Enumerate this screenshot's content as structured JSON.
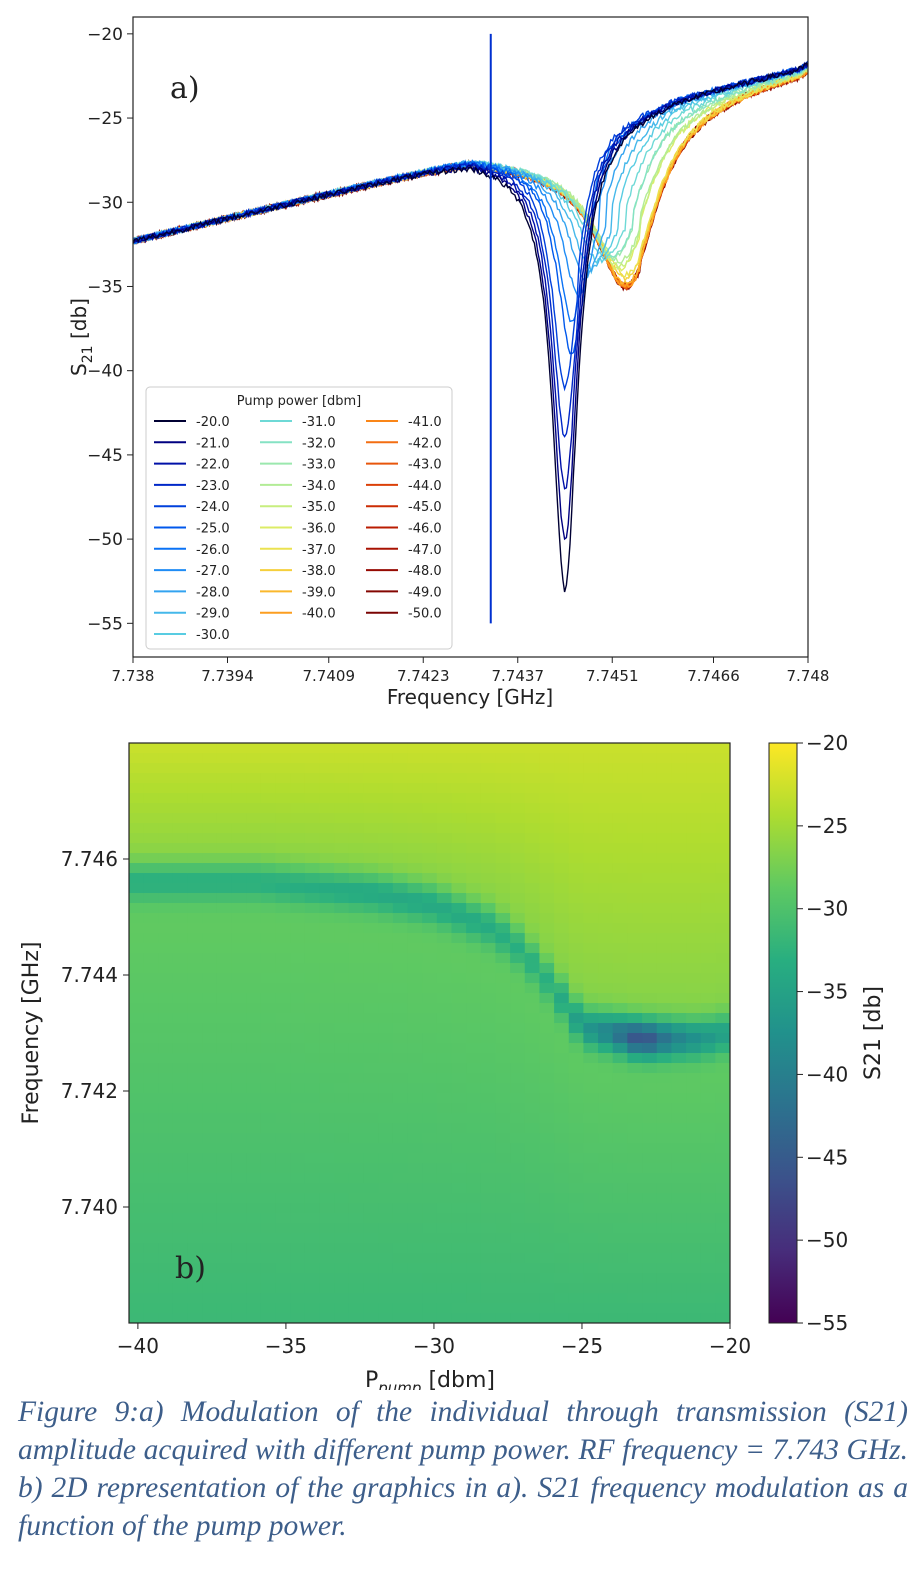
{
  "chart_data": [
    {
      "type": "line",
      "panel_label": "a)",
      "xlabel": "Frequency [GHz]",
      "ylabel_main": "S",
      "ylabel_sub": "21",
      "ylabel_suffix": " [db]",
      "xlim": [
        7.738,
        7.748
      ],
      "ylim": [
        -57,
        -19
      ],
      "x_ticks": [
        7.738,
        7.7394,
        7.7409,
        7.7423,
        7.7437,
        7.7451,
        7.7466,
        7.748
      ],
      "x_tick_labels": [
        "7.738",
        "7.7394",
        "7.7409",
        "7.7423",
        "7.7437",
        "7.7451",
        "7.7466",
        "7.748"
      ],
      "y_ticks": [
        -20,
        -25,
        -30,
        -35,
        -40,
        -45,
        -50,
        -55
      ],
      "y_tick_labels": [
        "−20",
        "−25",
        "−30",
        "−35",
        "−40",
        "−45",
        "−50",
        "−55"
      ],
      "legend_title": "Pump power [dbm]",
      "legend_placement": "lower-left",
      "grid": false,
      "series": [
        {
          "name": "-20.0",
          "color": "#000033",
          "dip_f": 7.7444,
          "dip_y": -53,
          "kink_f": 7.7444
        },
        {
          "name": "-21.0",
          "color": "#000080",
          "dip_f": 7.7444,
          "dip_y": -50,
          "kink_f": 7.7445
        },
        {
          "name": "-22.0",
          "color": "#0010a8",
          "dip_f": 7.7444,
          "dip_y": -47,
          "kink_f": 7.7445
        },
        {
          "name": "-23.0",
          "color": "#0028c8",
          "dip_f": 7.7444,
          "dip_y": -44,
          "kink_f": 7.7446
        },
        {
          "name": "-24.0",
          "color": "#0040dc",
          "dip_f": 7.7444,
          "dip_y": -41,
          "kink_f": 7.7446
        },
        {
          "name": "-25.0",
          "color": "#0058ec",
          "dip_f": 7.7445,
          "dip_y": -39,
          "kink_f": 7.7447
        },
        {
          "name": "-26.0",
          "color": "#0a72f5",
          "dip_f": 7.7445,
          "dip_y": -37,
          "kink_f": 7.7448
        },
        {
          "name": "-27.0",
          "color": "#1f8cf5",
          "dip_f": 7.7446,
          "dip_y": -35.5,
          "kink_f": 7.7449
        },
        {
          "name": "-28.0",
          "color": "#33a3f0",
          "dip_f": 7.7447,
          "dip_y": -34.5,
          "kink_f": 7.745
        },
        {
          "name": "-29.0",
          "color": "#45b8ea",
          "dip_f": 7.7448,
          "dip_y": -34,
          "kink_f": 7.7451
        },
        {
          "name": "-30.0",
          "color": "#58cce2",
          "dip_f": 7.7449,
          "dip_y": -33.5,
          "kink_f": 7.7452
        },
        {
          "name": "-31.0",
          "color": "#6ed9d6",
          "dip_f": 7.745,
          "dip_y": -33.3,
          "kink_f": 7.7453
        },
        {
          "name": "-32.0",
          "color": "#85e2c4",
          "dip_f": 7.7451,
          "dip_y": -33.2,
          "kink_f": 7.7454
        },
        {
          "name": "-33.0",
          "color": "#9be8ae",
          "dip_f": 7.7451,
          "dip_y": -33.3,
          "kink_f": 7.7454
        },
        {
          "name": "-34.0",
          "color": "#b2ec96",
          "dip_f": 7.7452,
          "dip_y": -33.5,
          "kink_f": 7.7455
        },
        {
          "name": "-35.0",
          "color": "#c7ee7e",
          "dip_f": 7.7452,
          "dip_y": -33.8,
          "kink_f": 7.7455
        },
        {
          "name": "-36.0",
          "color": "#dcec66",
          "dip_f": 7.7452,
          "dip_y": -34,
          "kink_f": 7.7455
        },
        {
          "name": "-37.0",
          "color": "#ebe250",
          "dip_f": 7.7453,
          "dip_y": -34.3,
          "kink_f": 7.7455
        },
        {
          "name": "-38.0",
          "color": "#f5cf3c",
          "dip_f": 7.7453,
          "dip_y": -34.5,
          "kink_f": 7.7455
        },
        {
          "name": "-39.0",
          "color": "#fab82c",
          "dip_f": 7.7453,
          "dip_y": -34.8,
          "kink_f": 7.7455
        },
        {
          "name": "-40.0",
          "color": "#fc9e20",
          "dip_f": 7.7453,
          "dip_y": -35,
          "kink_f": 7.7455
        },
        {
          "name": "-41.0",
          "color": "#fa8618",
          "dip_f": 7.7453,
          "dip_y": -35,
          "kink_f": 7.7455
        },
        {
          "name": "-42.0",
          "color": "#f36e12",
          "dip_f": 7.7453,
          "dip_y": -35,
          "kink_f": 7.7455
        },
        {
          "name": "-43.0",
          "color": "#e8560c",
          "dip_f": 7.7453,
          "dip_y": -35,
          "kink_f": 7.7455
        },
        {
          "name": "-44.0",
          "color": "#db4008",
          "dip_f": 7.7453,
          "dip_y": -35,
          "kink_f": 7.7455
        },
        {
          "name": "-45.0",
          "color": "#cb2c04",
          "dip_f": 7.7453,
          "dip_y": -35,
          "kink_f": 7.7455
        },
        {
          "name": "-46.0",
          "color": "#ba1c02",
          "dip_f": 7.7453,
          "dip_y": -35,
          "kink_f": 7.7455
        },
        {
          "name": "-47.0",
          "color": "#a81202",
          "dip_f": 7.7453,
          "dip_y": -35,
          "kink_f": 7.7455
        },
        {
          "name": "-48.0",
          "color": "#960a02",
          "dip_f": 7.7453,
          "dip_y": -35,
          "kink_f": 7.7455
        },
        {
          "name": "-49.0",
          "color": "#840602",
          "dip_f": 7.7453,
          "dip_y": -35,
          "kink_f": 7.7455
        },
        {
          "name": "-50.0",
          "color": "#7a0403",
          "dip_f": 7.7453,
          "dip_y": -35,
          "kink_f": 7.7455
        }
      ],
      "annotations": [
        {
          "type": "spike",
          "x": 7.7433,
          "y_top": -20,
          "y_bottom": -55
        }
      ]
    },
    {
      "type": "heatmap",
      "panel_label": "b)",
      "xlabel_main": "P",
      "xlabel_sub": "pump",
      "xlabel_suffix": " [dbm]",
      "ylabel": "Frequency [GHz]",
      "xlim": [
        -40.3,
        -20
      ],
      "ylim": [
        7.738,
        7.748
      ],
      "x_ticks": [
        -40,
        -35,
        -30,
        -25,
        -20
      ],
      "x_tick_labels": [
        "−40",
        "−35",
        "−30",
        "−25",
        "−20"
      ],
      "y_ticks": [
        7.746,
        7.744,
        7.742,
        7.74
      ],
      "y_tick_labels": [
        "7.746",
        "7.744",
        "7.742",
        "7.740"
      ],
      "colorbar_label": "S21 [db]",
      "colorbar_range": [
        -55,
        -20
      ],
      "colorbar_ticks": [
        -20,
        -25,
        -30,
        -35,
        -40,
        -45,
        -50,
        -55
      ],
      "colorbar_tick_labels": [
        "−20",
        "−25",
        "−30",
        "−35",
        "−40",
        "−45",
        "−50",
        "−55"
      ],
      "colormap": "viridis",
      "ridge": {
        "pump_dbm": [
          -40,
          -38,
          -36,
          -34,
          -32,
          -30,
          -28,
          -27,
          -26,
          -25,
          -24,
          -23,
          -22,
          -21,
          -20
        ],
        "freq_ghz": [
          7.7456,
          7.7456,
          7.7456,
          7.7455,
          7.7454,
          7.7452,
          7.7448,
          7.7444,
          7.7438,
          7.7431,
          7.743,
          7.7429,
          7.7429,
          7.7429,
          7.743
        ],
        "depth_db": [
          -33,
          -33,
          -33,
          -33.5,
          -34,
          -34,
          -33.5,
          -33,
          -33,
          -36,
          -40,
          -47,
          -40,
          -37,
          -35
        ]
      }
    }
  ],
  "caption": "Figure 9:a) Modulation of the  individual through transmission (S21) amplitude acquired with different pump power. RF frequency = 7.743 GHz. b) 2D representation of the graphics in a). S21 frequency modulation as a function of the pump power."
}
